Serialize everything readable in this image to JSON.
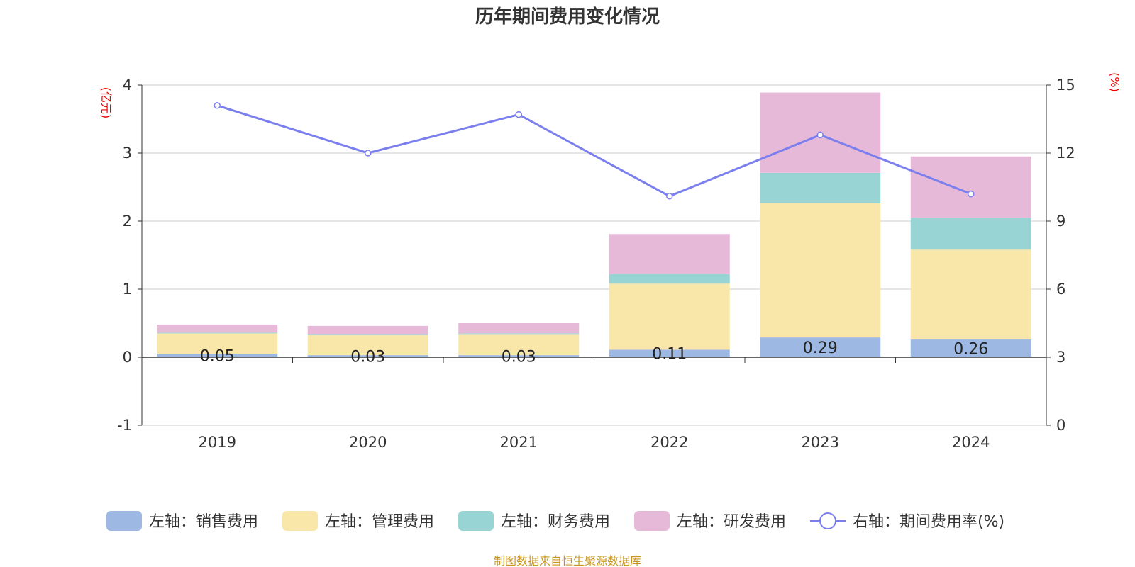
{
  "colors": {
    "sales": "#9db8e2",
    "admin": "#f8e7a9",
    "finance": "#98d4d4",
    "rnd": "#e7b9d9",
    "rate": "#7b7fee",
    "unit": "#ee0000",
    "source": "#c8961e"
  },
  "chart_data": {
    "type": "bar",
    "title": "历年期间费用变化情况",
    "categories": [
      "2019",
      "2020",
      "2021",
      "2022",
      "2023",
      "2024"
    ],
    "left_axis": {
      "unit": "(亿元)",
      "min": -1,
      "max": 4,
      "ticks": [
        "-1",
        "0",
        "1",
        "2",
        "3",
        "4"
      ]
    },
    "right_axis": {
      "unit": "(%)",
      "min": 0,
      "max": 15,
      "ticks": [
        "0",
        "3",
        "6",
        "9",
        "12",
        "15"
      ]
    },
    "grid": true,
    "legend_position": "bottom",
    "series": [
      {
        "name": "左轴：销售费用",
        "type": "bar",
        "color_key": "sales",
        "values": [
          0.05,
          0.03,
          0.03,
          0.11,
          0.29,
          0.26
        ],
        "labels": [
          "0.05",
          "0.03",
          "0.03",
          "0.11",
          "0.29",
          "0.26"
        ]
      },
      {
        "name": "左轴：管理费用",
        "type": "bar",
        "color_key": "admin",
        "values": [
          0.3,
          0.3,
          0.31,
          0.97,
          1.97,
          1.32
        ]
      },
      {
        "name": "左轴：财务费用",
        "type": "bar",
        "color_key": "finance",
        "values": [
          0.01,
          0.01,
          0.01,
          0.14,
          0.45,
          0.47
        ]
      },
      {
        "name": "左轴：研发费用",
        "type": "bar",
        "color_key": "rnd",
        "values": [
          0.12,
          0.12,
          0.15,
          0.59,
          1.18,
          0.9
        ]
      },
      {
        "name": "右轴：期间费用率(%)",
        "type": "line",
        "color_key": "rate",
        "values": [
          14.1,
          12.0,
          13.7,
          10.1,
          12.8,
          10.2
        ]
      }
    ]
  },
  "source": "制图数据来自恒生聚源数据库"
}
